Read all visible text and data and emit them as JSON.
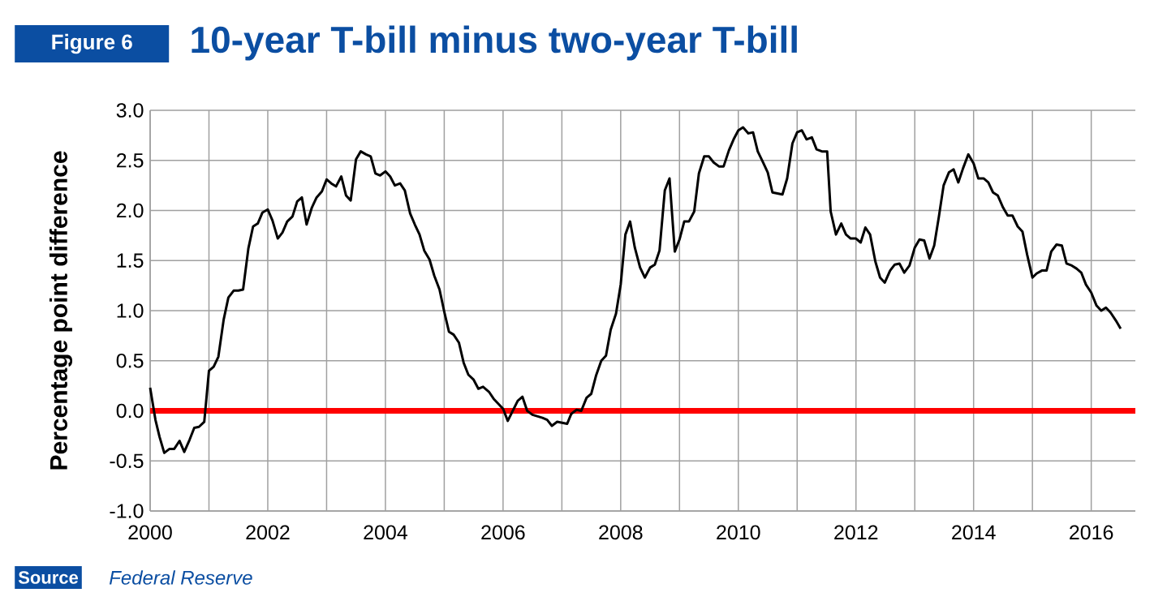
{
  "chart_data": {
    "type": "line",
    "title": "10-year T-bill minus two-year T-bill",
    "ylabel": "Percentage point difference",
    "annotations": [
      "Figure 6",
      "Source",
      "Federal Reserve"
    ],
    "x": [
      2000.0,
      2000.09,
      2000.16,
      2000.24,
      2000.33,
      2000.41,
      2000.5,
      2000.58,
      2000.67,
      2000.75,
      2000.83,
      2000.92,
      2001.0,
      2001.08,
      2001.16,
      2001.25,
      2001.33,
      2001.42,
      2001.5,
      2001.58,
      2001.67,
      2001.75,
      2001.83,
      2001.91,
      2002.0,
      2002.08,
      2002.17,
      2002.25,
      2002.33,
      2002.42,
      2002.5,
      2002.58,
      2002.66,
      2002.75,
      2002.83,
      2002.92,
      2003.0,
      2003.08,
      2003.16,
      2003.25,
      2003.33,
      2003.41,
      2003.5,
      2003.58,
      2003.67,
      2003.75,
      2003.83,
      2003.91,
      2004.0,
      2004.08,
      2004.16,
      2004.25,
      2004.33,
      2004.42,
      2004.5,
      2004.58,
      2004.66,
      2004.75,
      2004.83,
      2004.92,
      2005.0,
      2005.08,
      2005.16,
      2005.25,
      2005.33,
      2005.41,
      2005.5,
      2005.58,
      2005.66,
      2005.76,
      2005.84,
      2006.0,
      2006.08,
      2006.25,
      2006.33,
      2006.41,
      2006.5,
      2006.67,
      2006.75,
      2006.83,
      2006.92,
      2007.09,
      2007.16,
      2007.25,
      2007.33,
      2007.42,
      2007.5,
      2007.58,
      2007.67,
      2007.75,
      2007.83,
      2007.92,
      2008.0,
      2008.08,
      2008.16,
      2008.24,
      2008.33,
      2008.41,
      2008.5,
      2008.58,
      2008.66,
      2008.75,
      2008.83,
      2008.92,
      2009.0,
      2009.08,
      2009.16,
      2009.25,
      2009.33,
      2009.42,
      2009.5,
      2009.58,
      2009.67,
      2009.75,
      2009.84,
      2009.92,
      2010.0,
      2010.08,
      2010.17,
      2010.25,
      2010.33,
      2010.42,
      2010.5,
      2010.58,
      2010.75,
      2010.83,
      2010.92,
      2011.0,
      2011.08,
      2011.16,
      2011.25,
      2011.33,
      2011.42,
      2011.51,
      2011.57,
      2011.66,
      2011.75,
      2011.83,
      2011.91,
      2012.0,
      2012.08,
      2012.16,
      2012.24,
      2012.33,
      2012.41,
      2012.49,
      2012.58,
      2012.66,
      2012.74,
      2012.82,
      2012.91,
      2013.0,
      2013.08,
      2013.16,
      2013.25,
      2013.33,
      2013.41,
      2013.49,
      2013.58,
      2013.66,
      2013.74,
      2013.82,
      2013.91,
      2014.0,
      2014.08,
      2014.17,
      2014.25,
      2014.33,
      2014.41,
      2014.5,
      2014.58,
      2014.66,
      2014.75,
      2014.83,
      2014.91,
      2015.0,
      2015.07,
      2015.16,
      2015.24,
      2015.32,
      2015.41,
      2015.5,
      2015.58,
      2015.67,
      2015.75,
      2015.83,
      2015.91,
      2016.0,
      2016.09,
      2016.17,
      2016.25,
      2016.33,
      2016.42,
      2016.5
    ],
    "values": [
      0.23,
      -0.09,
      -0.26,
      -0.42,
      -0.38,
      -0.38,
      -0.3,
      -0.41,
      -0.29,
      -0.17,
      -0.16,
      -0.11,
      0.4,
      0.44,
      0.54,
      0.91,
      1.13,
      1.2,
      1.2,
      1.21,
      1.62,
      1.84,
      1.87,
      1.98,
      2.01,
      1.9,
      1.72,
      1.78,
      1.89,
      1.94,
      2.09,
      2.13,
      1.86,
      2.03,
      2.13,
      2.19,
      2.31,
      2.27,
      2.24,
      2.34,
      2.15,
      2.1,
      2.51,
      2.59,
      2.56,
      2.54,
      2.37,
      2.35,
      2.39,
      2.34,
      2.25,
      2.27,
      2.2,
      1.97,
      1.86,
      1.76,
      1.6,
      1.51,
      1.35,
      1.21,
      0.99,
      0.79,
      0.76,
      0.68,
      0.48,
      0.36,
      0.31,
      0.22,
      0.24,
      0.19,
      0.12,
      0.02,
      -0.1,
      0.1,
      0.14,
      0.0,
      -0.04,
      -0.07,
      -0.09,
      -0.15,
      -0.11,
      -0.13,
      -0.03,
      0.01,
      0.0,
      0.13,
      0.17,
      0.35,
      0.5,
      0.55,
      0.81,
      0.97,
      1.26,
      1.76,
      1.89,
      1.63,
      1.43,
      1.33,
      1.43,
      1.46,
      1.6,
      2.2,
      2.32,
      1.59,
      1.71,
      1.89,
      1.89,
      1.99,
      2.37,
      2.54,
      2.54,
      2.48,
      2.44,
      2.44,
      2.6,
      2.71,
      2.8,
      2.83,
      2.77,
      2.78,
      2.59,
      2.48,
      2.38,
      2.18,
      2.16,
      2.32,
      2.67,
      2.78,
      2.8,
      2.71,
      2.73,
      2.61,
      2.59,
      2.59,
      1.99,
      1.76,
      1.87,
      1.76,
      1.72,
      1.72,
      1.68,
      1.83,
      1.76,
      1.49,
      1.33,
      1.28,
      1.4,
      1.46,
      1.47,
      1.38,
      1.45,
      1.63,
      1.71,
      1.7,
      1.52,
      1.65,
      1.94,
      2.25,
      2.38,
      2.41,
      2.28,
      2.42,
      2.56,
      2.47,
      2.32,
      2.32,
      2.28,
      2.18,
      2.15,
      2.03,
      1.95,
      1.95,
      1.84,
      1.79,
      1.56,
      1.33,
      1.37,
      1.4,
      1.4,
      1.59,
      1.66,
      1.65,
      1.47,
      1.45,
      1.42,
      1.38,
      1.26,
      1.18,
      1.05,
      1.0,
      1.03,
      0.98,
      0.9,
      0.82
    ],
    "color": "#000000",
    "xlim": [
      2000,
      2016.75
    ],
    "xticks": [
      2000,
      {
        "value": 2001,
        "label": null
      },
      2002,
      {
        "value": 2003,
        "label": null
      },
      2004,
      {
        "value": 2005,
        "label": null
      },
      2006,
      {
        "value": 2007,
        "label": null
      },
      2008,
      {
        "value": 2009,
        "label": null
      },
      2010,
      {
        "value": 2011,
        "label": null
      },
      2012,
      {
        "value": 2013,
        "label": null
      },
      2014,
      {
        "value": 2015,
        "label": null
      },
      2016
    ],
    "ylim": [
      -1,
      3
    ],
    "yticks": [
      {
        "value": -1,
        "label": "-1.0"
      },
      {
        "value": -0.5,
        "label": "-0.5"
      },
      {
        "value": 0,
        "label": "0.0"
      },
      {
        "value": 0.5,
        "label": "0.5"
      },
      {
        "value": 1,
        "label": "1.0"
      },
      {
        "value": 1.5,
        "label": "1.5"
      },
      {
        "value": 2,
        "label": "2.0"
      },
      {
        "value": 2.5,
        "label": "2.5"
      },
      {
        "value": 3,
        "label": "3.0"
      }
    ],
    "grid": true,
    "ref_lines": [
      {
        "axis": "y",
        "value": 0,
        "color": "#ff0000"
      }
    ]
  }
}
